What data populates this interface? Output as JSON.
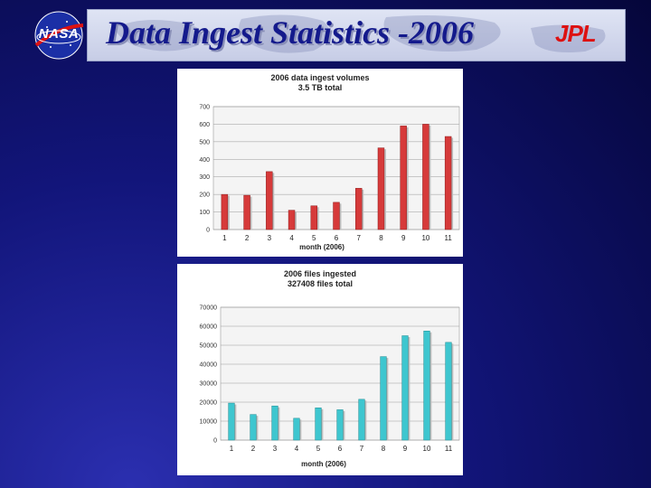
{
  "header": {
    "title": "Data Ingest Statistics -2006",
    "nasa_logo_text": "NASA",
    "jpl_logo_text": "JPL"
  },
  "colors": {
    "volume_bar": "#d63a3a",
    "volume_bar_dark": "#8f1c1c",
    "files_bar": "#3ec6cf",
    "files_bar_dark": "#1f8c93"
  },
  "chart_data": [
    {
      "type": "bar",
      "title": "2006 data ingest volumes",
      "subtitle": "3.5 TB total",
      "xlabel": "month (2006)",
      "ylabel": "",
      "categories": [
        "1",
        "2",
        "3",
        "4",
        "5",
        "6",
        "7",
        "8",
        "9",
        "10",
        "11"
      ],
      "values": [
        200,
        195,
        330,
        110,
        135,
        155,
        235,
        465,
        590,
        600,
        530
      ],
      "ylim": [
        0,
        700
      ],
      "yticks": [
        "0",
        "100",
        "200",
        "300",
        "400",
        "500",
        "600",
        "700"
      ],
      "grid": true,
      "legend": "none"
    },
    {
      "type": "bar",
      "title": "2006 files ingested",
      "subtitle": "327408 files total",
      "xlabel": "month (2006)",
      "ylabel": "",
      "categories": [
        "1",
        "2",
        "3",
        "4",
        "5",
        "6",
        "7",
        "8",
        "9",
        "10",
        "11"
      ],
      "values": [
        19500,
        13500,
        18000,
        11500,
        17000,
        16000,
        21500,
        44000,
        55000,
        57500,
        51500
      ],
      "ylim": [
        0,
        70000
      ],
      "yticks": [
        "0",
        "10000",
        "20000",
        "30000",
        "40000",
        "50000",
        "60000",
        "70000"
      ],
      "grid": true,
      "legend": "none"
    }
  ]
}
